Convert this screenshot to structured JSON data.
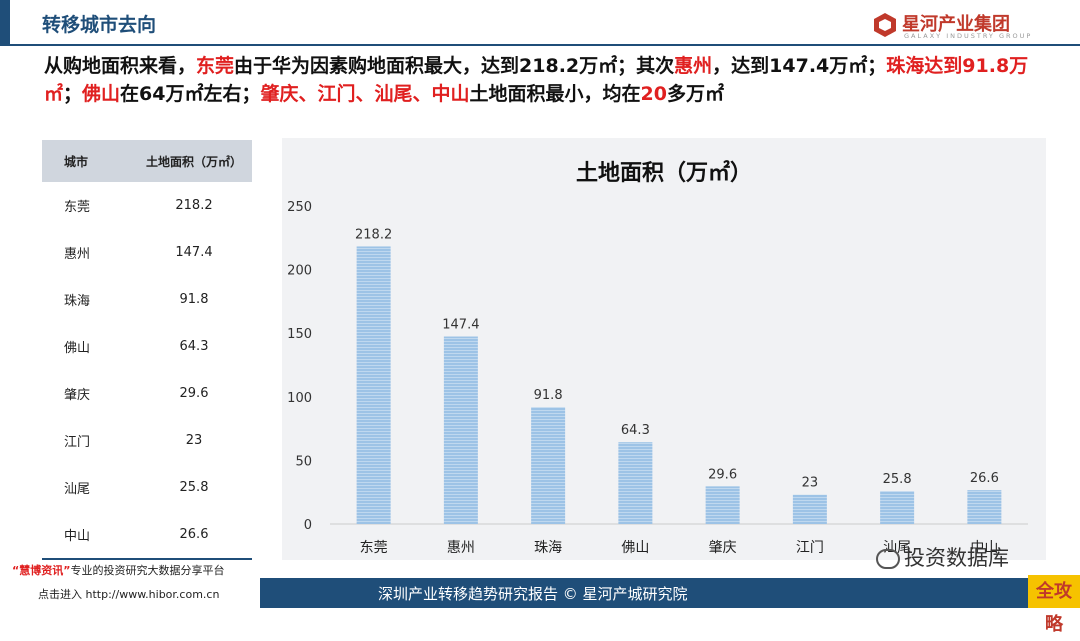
{
  "header": {
    "title": "转移城市去向",
    "logo_name": "星河产业集团",
    "logo_sub": "GALAXY INDUSTRY GROUP"
  },
  "summary": [
    {
      "t": "从购地面积来看，",
      "red": false
    },
    {
      "t": "东莞",
      "red": true
    },
    {
      "t": "由于华为因素购地面积最大，达到218.2万㎡；其次",
      "red": false
    },
    {
      "t": "惠州",
      "red": true
    },
    {
      "t": "，达到147.4万㎡；",
      "red": false
    },
    {
      "t": "珠海",
      "red": true
    },
    {
      "t": "达到91.8万㎡",
      "red": true
    },
    {
      "t": "；",
      "red": false
    },
    {
      "t": "佛山",
      "red": true
    },
    {
      "t": "在64万㎡左右；",
      "red": false
    },
    {
      "t": "肇庆、江门、汕尾、中山",
      "red": true
    },
    {
      "t": "土地面积最小，均在",
      "red": false
    },
    {
      "t": "20",
      "red": true
    },
    {
      "t": "多万㎡",
      "red": false
    }
  ],
  "table": {
    "headers": [
      "城市",
      "土地面积（万㎡）"
    ],
    "rows": [
      [
        "东莞",
        "218.2"
      ],
      [
        "惠州",
        "147.4"
      ],
      [
        "珠海",
        "91.8"
      ],
      [
        "佛山",
        "64.3"
      ],
      [
        "肇庆",
        "29.6"
      ],
      [
        "江门",
        "23"
      ],
      [
        "汕尾",
        "25.8"
      ],
      [
        "中山",
        "26.6"
      ]
    ]
  },
  "chart_data": {
    "type": "bar",
    "title": "土地面积（万㎡）",
    "categories": [
      "东莞",
      "惠州",
      "珠海",
      "佛山",
      "肇庆",
      "江门",
      "汕尾",
      "中山"
    ],
    "values": [
      218.2,
      147.4,
      91.8,
      64.3,
      29.6,
      23,
      25.8,
      26.6
    ],
    "ylim": [
      0,
      250
    ],
    "yticks": [
      0,
      50,
      100,
      150,
      200,
      250
    ],
    "grid": false,
    "bar_color": "#9dc3e6"
  },
  "footer": {
    "report": "深圳产业转移趋势研究报告 © 星河产城研究院",
    "wm_brand": "“慧博资讯”",
    "wm_desc": "专业的投资研究大数据分享平台",
    "wm_link": "点击进入 http://www.hibor.com.cn",
    "wechat": "投资数据库",
    "badge": "全攻略"
  },
  "colors": {
    "primary": "#1f4e79",
    "highlight": "#e02020",
    "bar": "#9dc3e6"
  }
}
